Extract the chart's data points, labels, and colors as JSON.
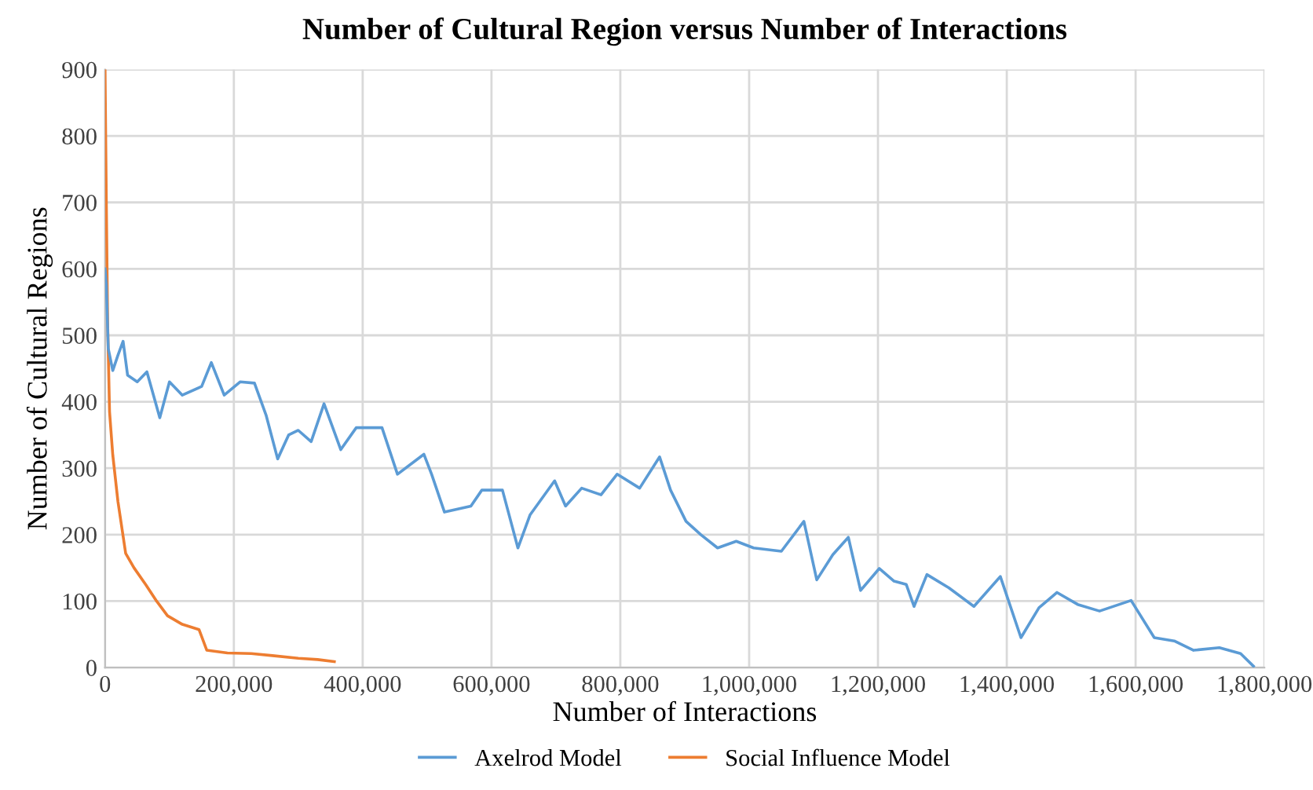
{
  "chart_data": {
    "type": "line",
    "title": "Number of Cultural Region versus Number of Interactions",
    "xlabel": "Number of Interactions",
    "ylabel": "Number of Cultural Regions",
    "xlim": [
      0,
      1800000
    ],
    "xticks": [
      0,
      {
        "value": 200000,
        "label": "200,000"
      },
      {
        "value": 400000,
        "label": "400,000"
      },
      {
        "value": 600000,
        "label": "600,000"
      },
      {
        "value": 800000,
        "label": "800,000"
      },
      {
        "value": 1000000,
        "label": "1,000,000"
      },
      {
        "value": 1200000,
        "label": "1,200,000"
      },
      {
        "value": 1400000,
        "label": "1,400,000"
      },
      {
        "value": 1600000,
        "label": "1,600,000"
      },
      {
        "value": 1800000,
        "label": "1,800,000"
      }
    ],
    "ylim": [
      0,
      900
    ],
    "yticks": [
      0,
      100,
      200,
      300,
      400,
      500,
      600,
      700,
      800,
      900
    ],
    "grid": true,
    "legend": "bottom",
    "marker": "none",
    "line_style": "solid",
    "series": [
      {
        "name": "Axelrod Model",
        "color": "#5b9bd5",
        "x": [
          0,
          2000,
          5000,
          12000,
          20000,
          28000,
          35000,
          50000,
          65000,
          85000,
          100000,
          120000,
          150000,
          165000,
          185000,
          210000,
          232000,
          250000,
          268000,
          285000,
          300000,
          320000,
          340000,
          366000,
          390000,
          430000,
          454000,
          495000,
          507000,
          527000,
          568000,
          585000,
          617000,
          641000,
          660000,
          698000,
          715000,
          740000,
          770000,
          795000,
          830000,
          861000,
          878000,
          902000,
          925000,
          951000,
          980000,
          1007000,
          1050000,
          1085000,
          1105000,
          1130000,
          1154000,
          1173000,
          1202000,
          1225000,
          1244000,
          1256000,
          1276000,
          1310000,
          1349000,
          1390000,
          1422000,
          1450000,
          1478000,
          1510000,
          1544000,
          1593000,
          1629000,
          1660000,
          1690000,
          1730000,
          1763000,
          1783000
        ],
        "values": [
          600,
          575,
          480,
          447,
          470,
          491,
          440,
          430,
          445,
          376,
          430,
          410,
          423,
          459,
          410,
          430,
          428,
          380,
          314,
          350,
          357,
          340,
          397,
          328,
          361,
          361,
          291,
          321,
          291,
          234,
          243,
          267,
          267,
          180,
          230,
          281,
          243,
          270,
          260,
          291,
          270,
          317,
          267,
          220,
          200,
          180,
          190,
          180,
          175,
          220,
          132,
          170,
          196,
          116,
          149,
          130,
          125,
          92,
          140,
          120,
          92,
          137,
          45,
          90,
          113,
          95,
          85,
          101,
          45,
          40,
          26,
          30,
          21,
          2
        ]
      },
      {
        "name": "Social Influence Model",
        "color": "#ed7d31",
        "x": [
          0,
          1000,
          2000,
          4000,
          7000,
          12000,
          20000,
          32000,
          45000,
          63000,
          80000,
          97000,
          120000,
          146000,
          158000,
          190000,
          227000,
          260000,
          300000,
          330000,
          356000
        ],
        "values": [
          900,
          800,
          700,
          520,
          385,
          320,
          250,
          172,
          150,
          125,
          100,
          78,
          65,
          57,
          26,
          22,
          21,
          18,
          14,
          12,
          9
        ]
      }
    ]
  }
}
